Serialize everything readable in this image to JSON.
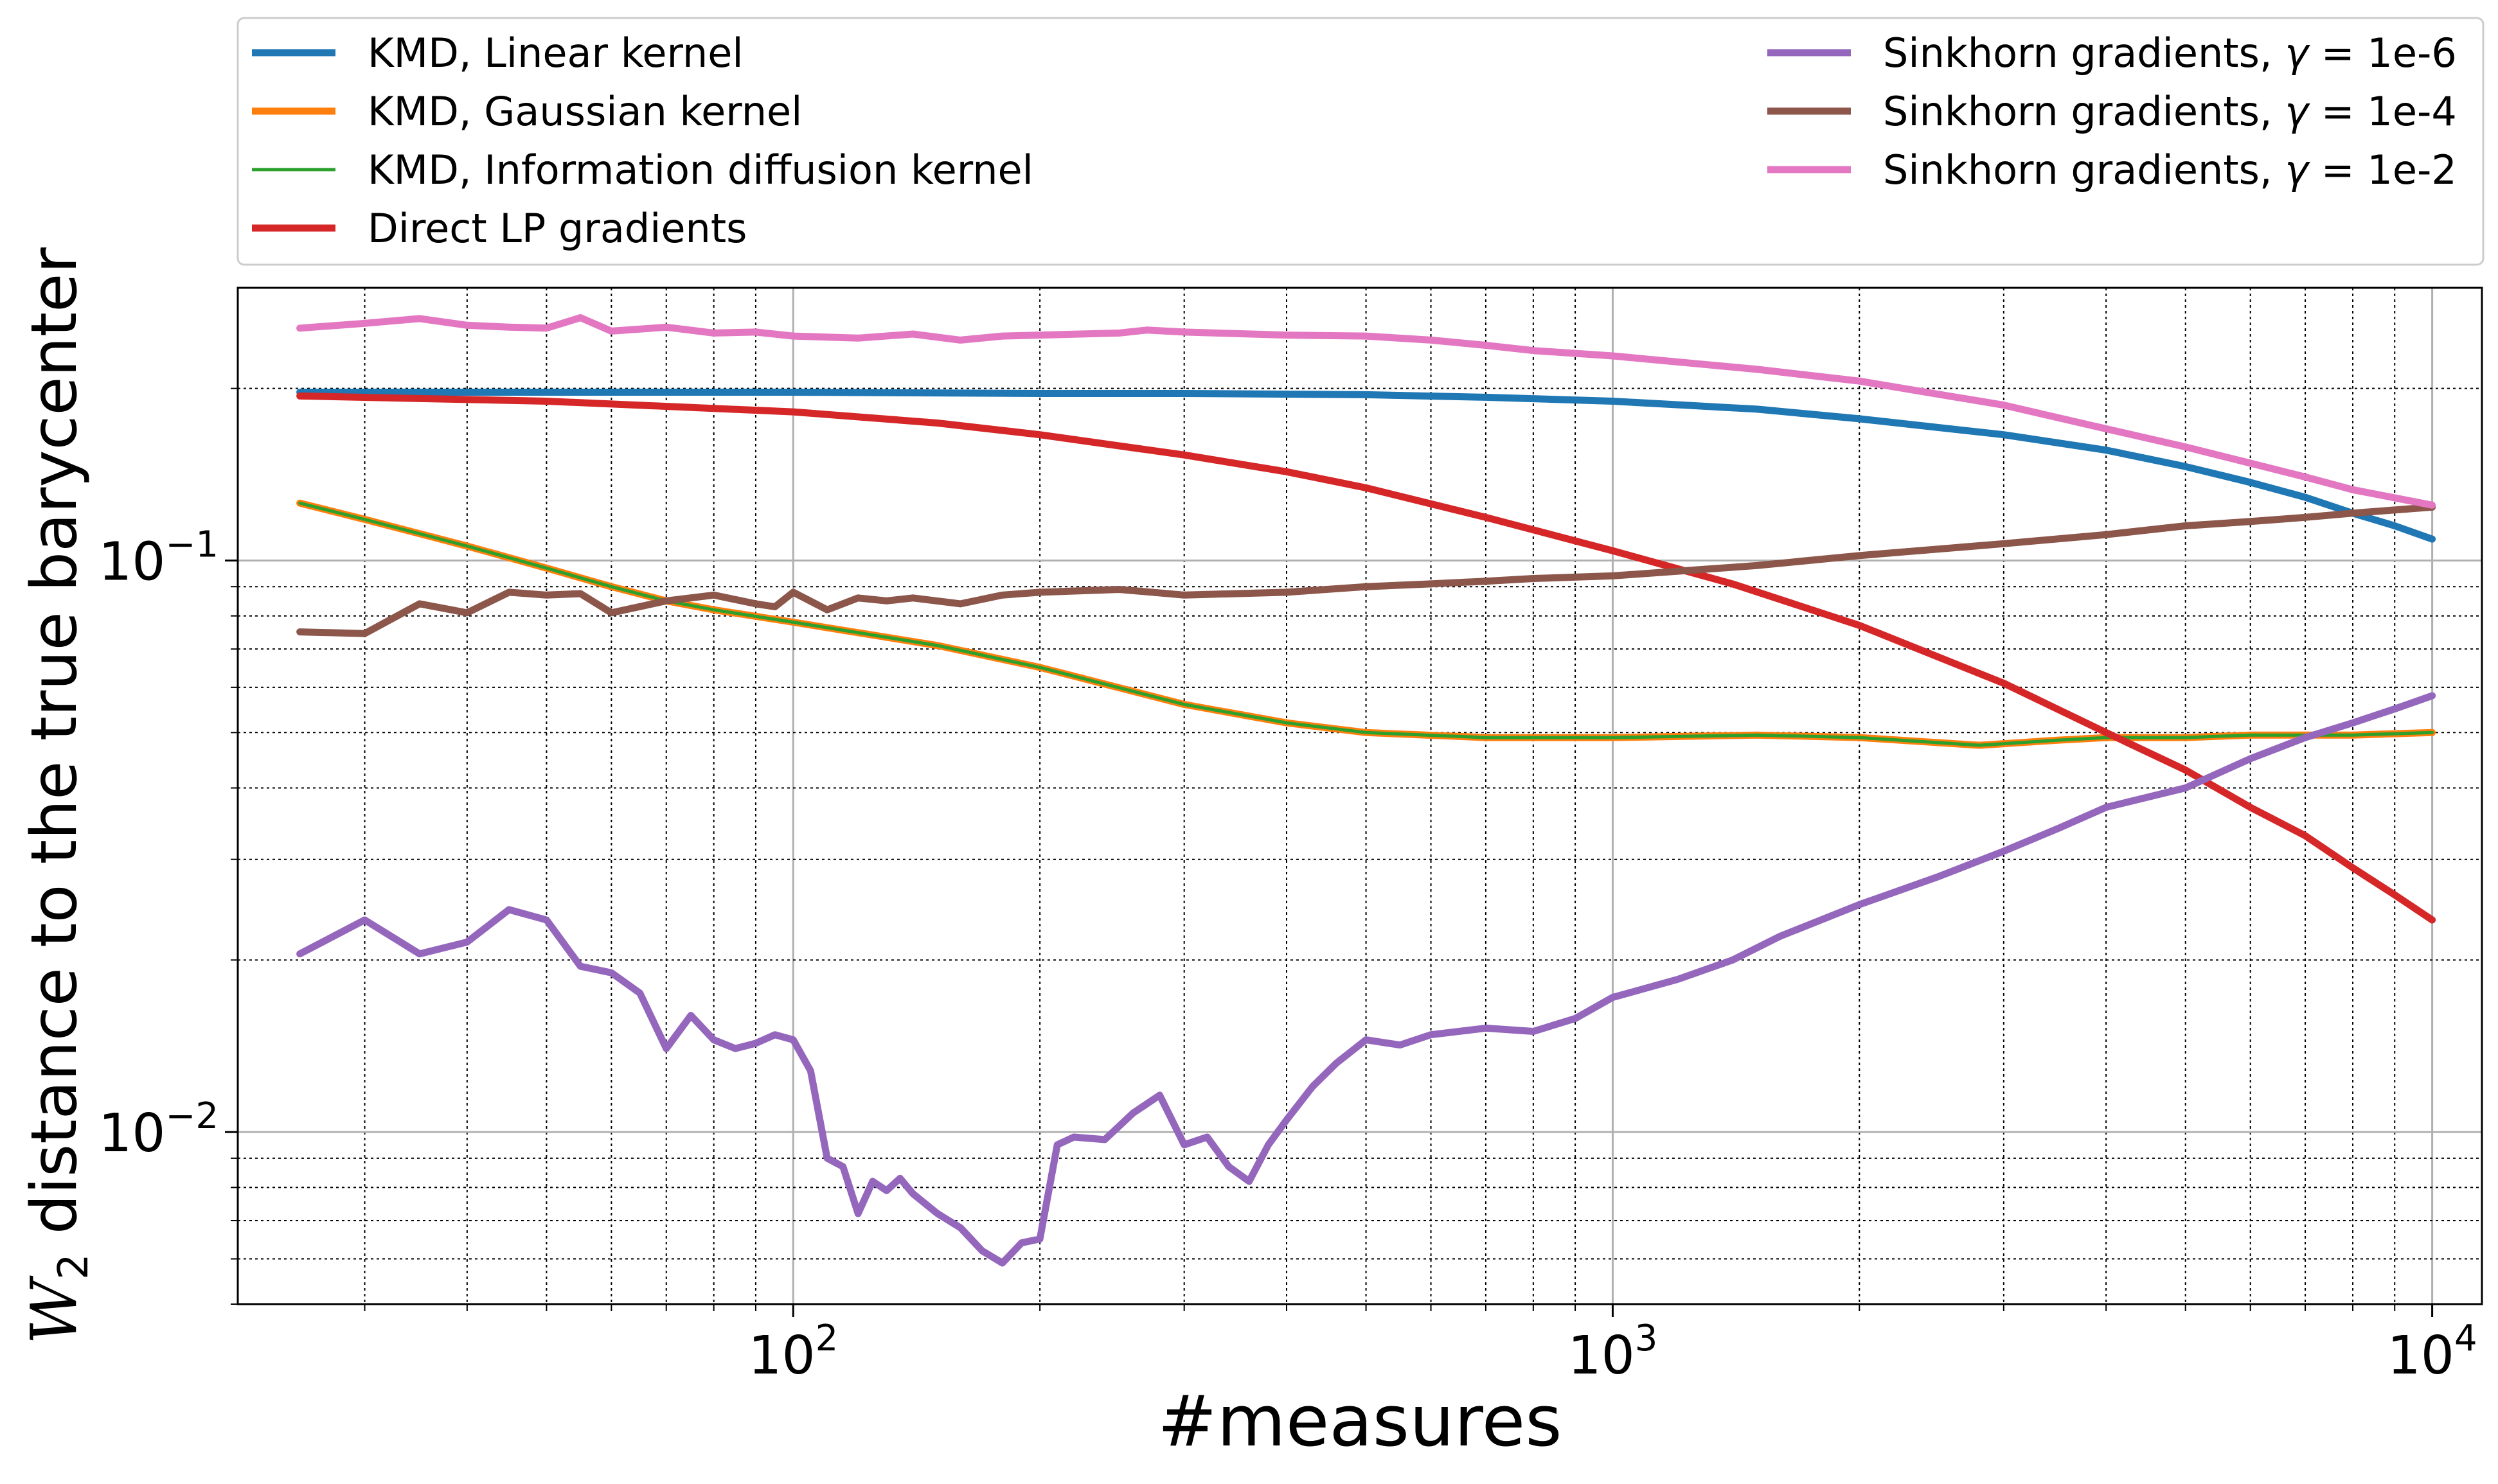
{
  "chart_data": {
    "type": "line",
    "xlabel": "#measures",
    "ylabel": "distance to the true barycenter",
    "ylabel_symbol": "W",
    "ylabel_symbol_sub": "2",
    "xscale": "log",
    "yscale": "log",
    "xlim": [
      21,
      11500
    ],
    "ylim": [
      0.005,
      0.3
    ],
    "x_ticks": [
      {
        "value": 100,
        "base": "10",
        "exp": "2"
      },
      {
        "value": 1000,
        "base": "10",
        "exp": "3"
      },
      {
        "value": 10000,
        "base": "10",
        "exp": "4"
      }
    ],
    "y_ticks": [
      {
        "value": 0.01,
        "base": "10",
        "exp": "−2"
      },
      {
        "value": 0.1,
        "base": "10",
        "exp": "−1"
      }
    ],
    "grid": "major solid, minor dotted",
    "legend_placement": "above plot, two columns",
    "series": [
      {
        "name": "KMD, Linear kernel",
        "color": "#1f77b4",
        "width": 11,
        "x": [
          25,
          50,
          100,
          200,
          300,
          500,
          700,
          1000,
          1500,
          2000,
          3000,
          4000,
          5000,
          6000,
          7000,
          8000,
          9000,
          10000
        ],
        "y": [
          0.197,
          0.197,
          0.197,
          0.196,
          0.196,
          0.195,
          0.193,
          0.19,
          0.184,
          0.177,
          0.166,
          0.156,
          0.146,
          0.137,
          0.129,
          0.121,
          0.115,
          0.109
        ]
      },
      {
        "name": "KMD, Gaussian kernel",
        "color": "#ff7f0e",
        "width": 11,
        "x": [
          25,
          30,
          40,
          50,
          60,
          70,
          80,
          100,
          150,
          200,
          300,
          400,
          500,
          700,
          1000,
          1500,
          2000,
          2800,
          3500,
          4000,
          5000,
          6000,
          7000,
          8000,
          10000
        ],
        "y": [
          0.126,
          0.118,
          0.106,
          0.097,
          0.09,
          0.085,
          0.082,
          0.078,
          0.071,
          0.065,
          0.056,
          0.052,
          0.05,
          0.049,
          0.049,
          0.0495,
          0.049,
          0.0475,
          0.0485,
          0.049,
          0.049,
          0.0495,
          0.0495,
          0.0495,
          0.05
        ]
      },
      {
        "name": "KMD, Information diffusion kernel",
        "color": "#2ca02c",
        "width": 5,
        "x": [
          25,
          30,
          40,
          50,
          60,
          70,
          80,
          100,
          150,
          200,
          300,
          400,
          500,
          700,
          1000,
          1500,
          2000,
          2800,
          3500,
          4000,
          5000,
          6000,
          7000,
          8000,
          10000
        ],
        "y": [
          0.126,
          0.118,
          0.106,
          0.097,
          0.09,
          0.085,
          0.082,
          0.078,
          0.071,
          0.065,
          0.056,
          0.052,
          0.05,
          0.049,
          0.049,
          0.0495,
          0.049,
          0.0475,
          0.0485,
          0.049,
          0.049,
          0.0495,
          0.0495,
          0.0495,
          0.05
        ]
      },
      {
        "name": "Direct LP gradients",
        "color": "#d62728",
        "width": 11,
        "x": [
          25,
          50,
          100,
          150,
          200,
          300,
          400,
          500,
          700,
          1000,
          1400,
          2000,
          3000,
          4000,
          5000,
          6000,
          7000,
          8000,
          9000,
          10000
        ],
        "y": [
          0.194,
          0.19,
          0.182,
          0.174,
          0.166,
          0.153,
          0.143,
          0.134,
          0.119,
          0.104,
          0.091,
          0.077,
          0.061,
          0.05,
          0.043,
          0.037,
          0.033,
          0.029,
          0.026,
          0.0235
        ]
      },
      {
        "name": "Sinkhorn gradients, γ = 1e-6",
        "color": "#9467bd",
        "width": 11,
        "x": [
          25,
          30,
          35,
          40,
          45,
          50,
          55,
          60,
          65,
          70,
          75,
          80,
          85,
          90,
          95,
          100,
          105,
          110,
          115,
          120,
          125,
          130,
          135,
          140,
          150,
          160,
          170,
          180,
          190,
          200,
          210,
          220,
          240,
          260,
          280,
          300,
          320,
          340,
          360,
          380,
          400,
          430,
          460,
          500,
          550,
          600,
          700,
          800,
          900,
          1000,
          1200,
          1400,
          1600,
          2000,
          2500,
          3000,
          3500,
          4000,
          5000,
          6000,
          7000,
          8000,
          9000,
          10000
        ],
        "y": [
          0.0205,
          0.0235,
          0.0205,
          0.0215,
          0.0245,
          0.0235,
          0.0195,
          0.019,
          0.0175,
          0.014,
          0.016,
          0.0145,
          0.014,
          0.0143,
          0.0148,
          0.0145,
          0.0128,
          0.009,
          0.0087,
          0.0072,
          0.0082,
          0.0079,
          0.0083,
          0.0078,
          0.0072,
          0.0068,
          0.0062,
          0.0059,
          0.0064,
          0.0065,
          0.0095,
          0.0098,
          0.0097,
          0.0108,
          0.0116,
          0.0095,
          0.0098,
          0.0087,
          0.0082,
          0.0095,
          0.0105,
          0.012,
          0.0132,
          0.0145,
          0.0142,
          0.0148,
          0.0152,
          0.015,
          0.0158,
          0.0172,
          0.0185,
          0.02,
          0.022,
          0.025,
          0.028,
          0.031,
          0.034,
          0.037,
          0.04,
          0.045,
          0.049,
          0.052,
          0.055,
          0.058
        ]
      },
      {
        "name": "Sinkhorn gradients, γ = 1e-4",
        "color": "#8c564b",
        "width": 11,
        "x": [
          25,
          30,
          35,
          40,
          45,
          50,
          55,
          60,
          70,
          80,
          90,
          95,
          100,
          110,
          120,
          130,
          140,
          160,
          180,
          200,
          250,
          300,
          400,
          500,
          600,
          700,
          800,
          1000,
          1500,
          2000,
          3000,
          4000,
          5000,
          6000,
          7000,
          8000,
          10000
        ],
        "y": [
          0.075,
          0.0745,
          0.084,
          0.081,
          0.088,
          0.087,
          0.0875,
          0.081,
          0.085,
          0.087,
          0.084,
          0.083,
          0.088,
          0.082,
          0.086,
          0.085,
          0.086,
          0.084,
          0.087,
          0.088,
          0.089,
          0.087,
          0.088,
          0.09,
          0.091,
          0.092,
          0.093,
          0.094,
          0.098,
          0.102,
          0.107,
          0.111,
          0.115,
          0.117,
          0.119,
          0.121,
          0.124
        ]
      },
      {
        "name": "Sinkhorn gradients, γ = 1e-2",
        "color": "#e377c2",
        "width": 11,
        "x": [
          25,
          30,
          35,
          40,
          45,
          50,
          55,
          60,
          70,
          80,
          90,
          100,
          120,
          140,
          160,
          180,
          200,
          250,
          270,
          300,
          400,
          500,
          600,
          700,
          800,
          1000,
          1500,
          2000,
          3000,
          4000,
          5000,
          6000,
          7000,
          8000,
          10000
        ],
        "y": [
          0.255,
          0.26,
          0.265,
          0.258,
          0.256,
          0.255,
          0.266,
          0.252,
          0.256,
          0.25,
          0.251,
          0.247,
          0.245,
          0.249,
          0.243,
          0.247,
          0.248,
          0.25,
          0.253,
          0.251,
          0.248,
          0.247,
          0.243,
          0.238,
          0.233,
          0.228,
          0.216,
          0.206,
          0.187,
          0.17,
          0.158,
          0.148,
          0.14,
          0.133,
          0.125
        ]
      }
    ]
  }
}
